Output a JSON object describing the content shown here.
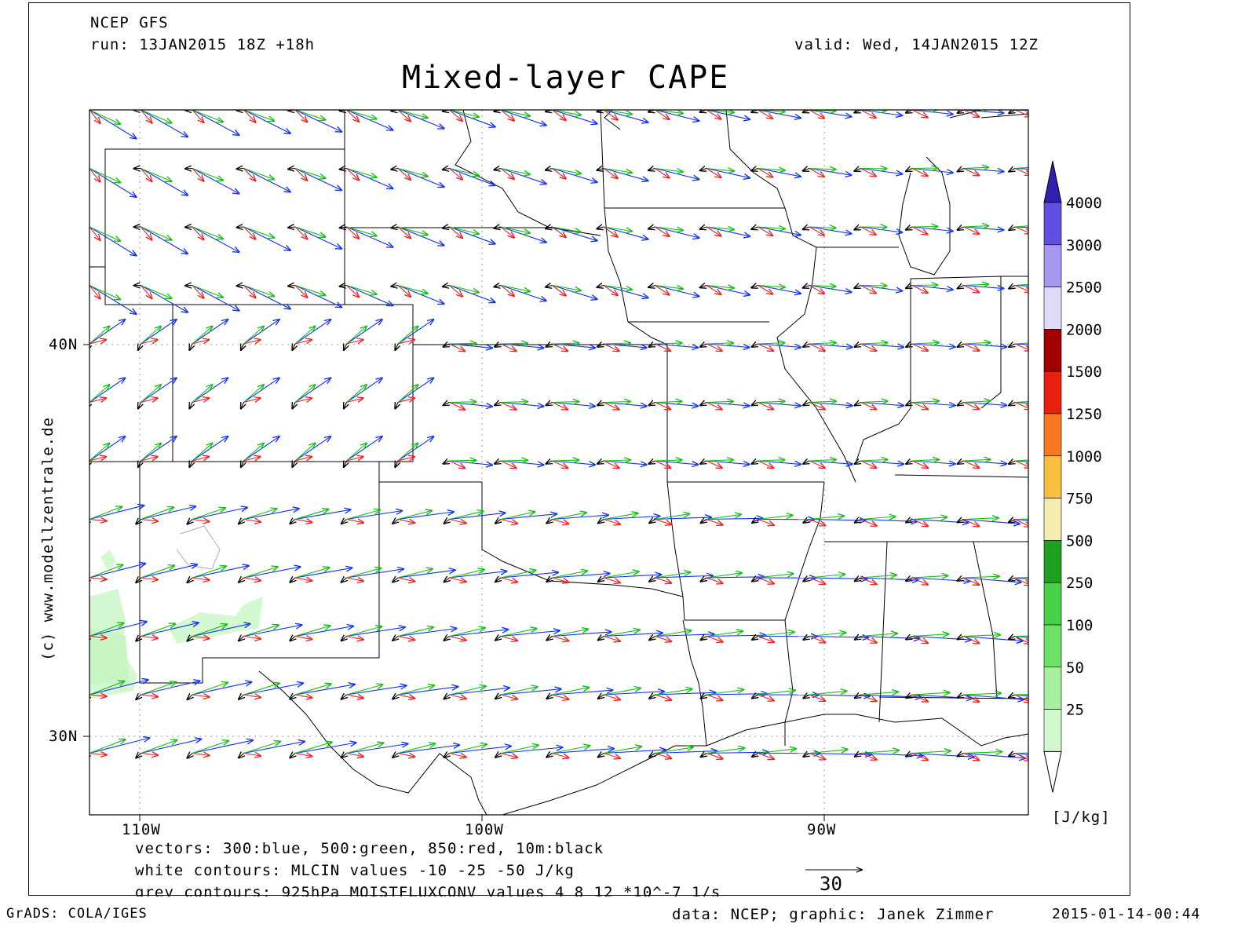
{
  "header": {
    "model": "NCEP GFS",
    "run": "run: 13JAN2015 18Z +18h",
    "valid": "valid: Wed, 14JAN2015 12Z",
    "title": "Mixed-layer CAPE"
  },
  "map": {
    "lat_labels": [
      "40N",
      "30N"
    ],
    "lon_labels": [
      "110W",
      "100W",
      "90W"
    ],
    "copyright": "(c) www.modellzentrale.de"
  },
  "legend": {
    "levels": [
      "25",
      "50",
      "100",
      "250",
      "500",
      "750",
      "1000",
      "1250",
      "1500",
      "2000",
      "2500",
      "3000",
      "4000"
    ],
    "colors": [
      "#d4f8d0",
      "#a8f0a0",
      "#6de06a",
      "#48d048",
      "#20a020",
      "#f5eeb0",
      "#f8c040",
      "#f87820",
      "#e82010",
      "#a00000",
      "#e0dcf8",
      "#a898f0",
      "#6050e0",
      "#3020b0"
    ],
    "unit": "[J/kg]"
  },
  "footer_notes": [
    "vectors: 300:blue, 500:green, 850:red, 10m:black",
    "white contours: MLCIN values -10 -25 -50 J/kg",
    "grey contours: 925hPa MOISTFLUXCONV values 4 8 12 *10^-7 1/s"
  ],
  "reference_vector": "30",
  "bottom": {
    "left": "GrADS: COLA/IGES",
    "center": "data: NCEP; graphic: Janek Zimmer",
    "right": "2015-01-14-00:44"
  },
  "vector_colors": {
    "300": "#1030f0",
    "500": "#10c010",
    "850": "#f02020",
    "10m": "#000000"
  }
}
